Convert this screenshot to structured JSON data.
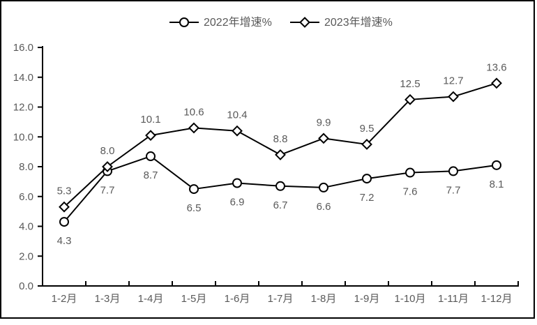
{
  "chart_data": {
    "type": "line",
    "title": "",
    "xlabel": "",
    "ylabel": "",
    "grid": false,
    "legend_position": "top",
    "data_labels": true,
    "categories": [
      "1-2月",
      "1-3月",
      "1-4月",
      "1-5月",
      "1-6月",
      "1-7月",
      "1-8月",
      "1-9月",
      "1-10月",
      "1-11月",
      "1-12月"
    ],
    "series": [
      {
        "name": "2022年增速%",
        "marker": "circle",
        "label_position": "below",
        "values": [
          4.3,
          7.7,
          8.7,
          6.5,
          6.9,
          6.7,
          6.6,
          7.2,
          7.6,
          7.7,
          8.1
        ]
      },
      {
        "name": "2023年增速%",
        "marker": "diamond",
        "label_position": "above",
        "values": [
          5.3,
          8.0,
          10.1,
          10.6,
          10.4,
          8.8,
          9.9,
          9.5,
          12.5,
          12.7,
          13.6
        ]
      }
    ],
    "ylim": [
      0,
      16
    ],
    "ytick_step": 2,
    "ytick_labels": [
      "0.0",
      "2.0",
      "4.0",
      "6.0",
      "8.0",
      "10.0",
      "12.0",
      "14.0",
      "16.0"
    ]
  },
  "legend": {
    "items": [
      {
        "label": "2022年增速%",
        "marker": "circle"
      },
      {
        "label": "2023年增速%",
        "marker": "diamond"
      }
    ]
  },
  "colors": {
    "line": "#000000",
    "text": "#595959",
    "marker_fill": "#ffffff",
    "background": "#ffffff",
    "border": "#000000"
  }
}
